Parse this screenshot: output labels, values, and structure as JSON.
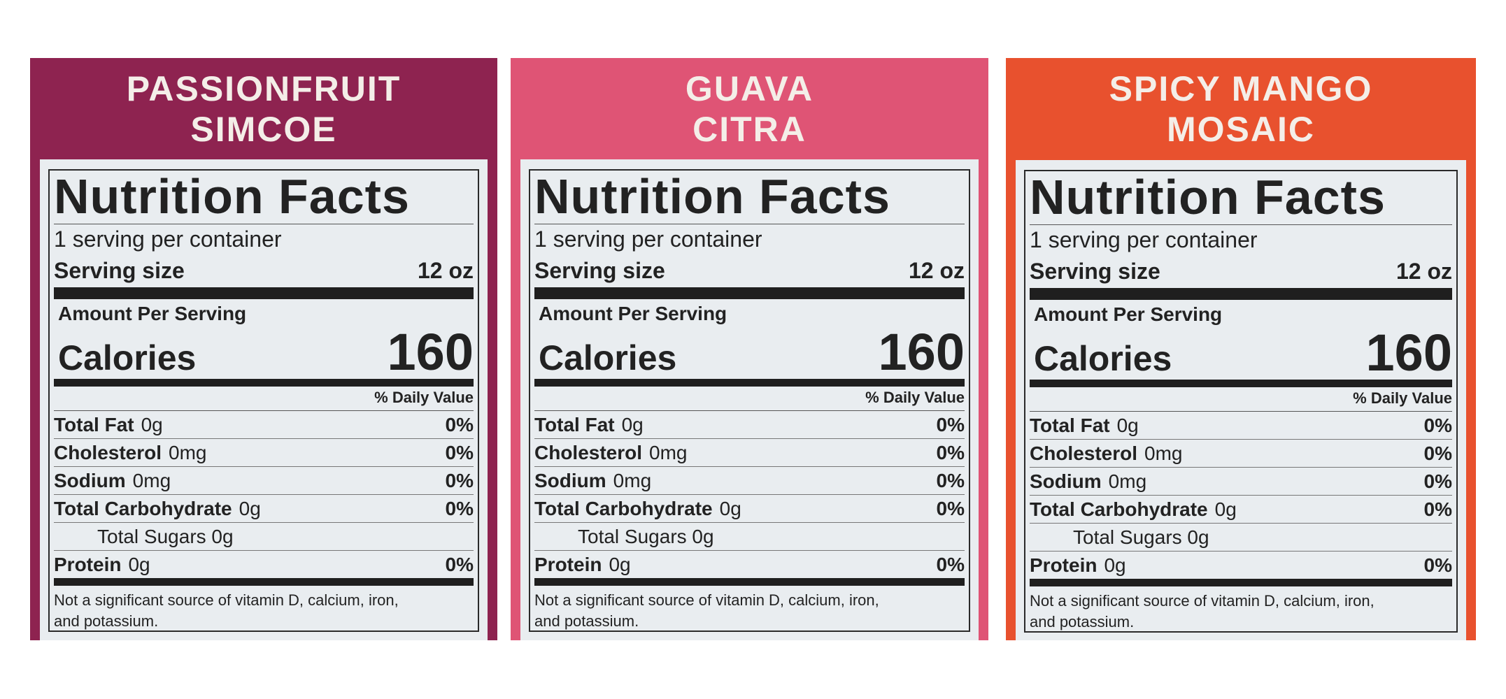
{
  "panels": [
    {
      "flavor_line1": "PASSIONFRUIT",
      "flavor_line2": "SIMCOE",
      "color": "#8e2350",
      "title": "Nutrition Facts",
      "servings": "1 serving per container",
      "serving_size_label": "Serving size",
      "serving_size_value": "12 oz",
      "amount_per_serving": "Amount Per Serving",
      "calories_label": "Calories",
      "calories_value": "160",
      "dv_header": "% Daily Value",
      "total_fat_label": "Total Fat",
      "total_fat_amount": "0g",
      "total_fat_pct": "0%",
      "cholesterol_label": "Cholesterol",
      "cholesterol_amount": "0mg",
      "cholesterol_pct": "0%",
      "sodium_label": "Sodium",
      "sodium_amount": "0mg",
      "sodium_pct": "0%",
      "carb_label": "Total Carbohydrate",
      "carb_amount": "0g",
      "carb_pct": "0%",
      "sugars": "Total Sugars 0g",
      "protein_label": "Protein",
      "protein_amount": "0g",
      "protein_pct": "0%",
      "footnote_line1": "Not a significant source of vitamin D, calcium, iron,",
      "footnote_line2": "and potassium."
    },
    {
      "flavor_line1": "GUAVA",
      "flavor_line2": "CITRA",
      "color": "#df5475",
      "title": "Nutrition Facts",
      "servings": "1 serving per container",
      "serving_size_label": "Serving size",
      "serving_size_value": "12 oz",
      "amount_per_serving": "Amount Per Serving",
      "calories_label": "Calories",
      "calories_value": "160",
      "dv_header": "% Daily Value",
      "total_fat_label": "Total Fat",
      "total_fat_amount": "0g",
      "total_fat_pct": "0%",
      "cholesterol_label": "Cholesterol",
      "cholesterol_amount": "0mg",
      "cholesterol_pct": "0%",
      "sodium_label": "Sodium",
      "sodium_amount": "0mg",
      "sodium_pct": "0%",
      "carb_label": "Total Carbohydrate",
      "carb_amount": "0g",
      "carb_pct": "0%",
      "sugars": "Total Sugars 0g",
      "protein_label": "Protein",
      "protein_amount": "0g",
      "protein_pct": "0%",
      "footnote_line1": "Not a significant source of vitamin D, calcium, iron,",
      "footnote_line2": "and potassium."
    },
    {
      "flavor_line1": "SPICY MANGO",
      "flavor_line2": "MOSAIC",
      "color": "#e8512e",
      "title": "Nutrition Facts",
      "servings": "1 serving per container",
      "serving_size_label": "Serving size",
      "serving_size_value": "12 oz",
      "amount_per_serving": "Amount Per Serving",
      "calories_label": "Calories",
      "calories_value": "160",
      "dv_header": "% Daily Value",
      "total_fat_label": "Total Fat",
      "total_fat_amount": "0g",
      "total_fat_pct": "0%",
      "cholesterol_label": "Cholesterol",
      "cholesterol_amount": "0mg",
      "cholesterol_pct": "0%",
      "sodium_label": "Sodium",
      "sodium_amount": "0mg",
      "sodium_pct": "0%",
      "carb_label": "Total Carbohydrate",
      "carb_amount": "0g",
      "carb_pct": "0%",
      "sugars": "Total Sugars 0g",
      "protein_label": "Protein",
      "protein_amount": "0g",
      "protein_pct": "0%",
      "footnote_line1": "Not a significant source of vitamin D, calcium, iron,",
      "footnote_line2": "and potassium."
    }
  ]
}
